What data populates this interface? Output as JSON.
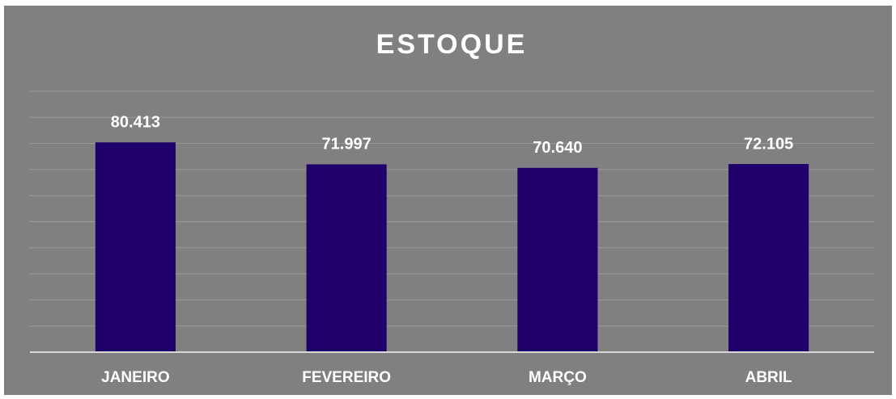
{
  "chart_data": {
    "type": "bar",
    "title": "ESTOQUE",
    "categories": [
      "JANEIRO",
      "FEVEREIRO",
      "MARÇO",
      "ABRIL"
    ],
    "values": [
      80413,
      71997,
      70640,
      72105
    ],
    "value_labels": [
      "80.413",
      "71.997",
      "70.640",
      "72.105"
    ],
    "color": "#1f006b",
    "ylim": [
      0,
      100000
    ],
    "yticks": [
      0,
      10000,
      20000,
      30000,
      40000,
      50000,
      60000,
      70000,
      80000,
      90000,
      100000
    ],
    "grid": true
  }
}
